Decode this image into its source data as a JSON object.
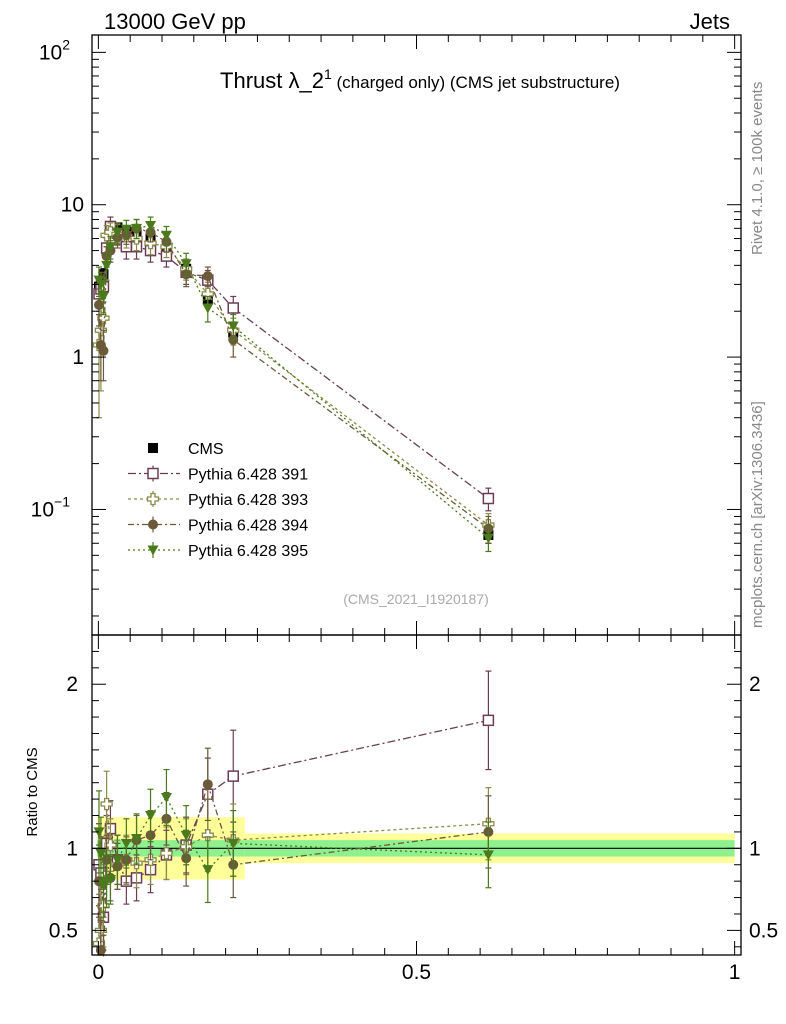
{
  "header": {
    "left": "13000 GeV pp",
    "right": "Jets"
  },
  "side": {
    "rivet": "Rivet 4.1.0, ≥ 100k events",
    "mcplots": "mcplots.cern.ch [arXiv:1306.3436]"
  },
  "watermark": "(CMS_2021_I1920187)",
  "colors": {
    "cms": "#000000",
    "p391": "#6b3d55",
    "p393": "#8a8a4a",
    "p394": "#6b5a3a",
    "p395": "#4a7a1a",
    "band_inner": "#8ff08f",
    "band_outer": "#ffff99"
  },
  "chart_data": [
    {
      "type": "scatter",
      "title": "Thrust λ_2¹ (charged only) (CMS jet substructure)",
      "title_main": "Thrust λ_2",
      "title_sup": "1",
      "title_rest": " (charged only) (CMS jet substructure)",
      "xlabel": "",
      "ylabel": "",
      "yscale": "log",
      "xlim": [
        -0.01,
        1.01
      ],
      "ylim": [
        0.015,
        130
      ],
      "yticks": [
        {
          "value": 100,
          "base": "10",
          "exp": "2"
        },
        {
          "value": 10,
          "base": "10",
          "exp": ""
        },
        {
          "value": 1,
          "base": "1",
          "exp": ""
        },
        {
          "value": 0.1,
          "base": "10",
          "exp": "−1"
        }
      ],
      "x": [
        0.001,
        0.004,
        0.008,
        0.013,
        0.019,
        0.03,
        0.044,
        0.06,
        0.082,
        0.107,
        0.138,
        0.172,
        0.212,
        0.613
      ],
      "series": [
        {
          "name": "CMS",
          "marker": "square-filled",
          "values": [
            2.9,
            3.1,
            3.5,
            5.0,
            6.5,
            7.1,
            6.7,
            6.6,
            6.0,
            4.8,
            3.8,
            2.4,
            1.45,
            0.068
          ],
          "errors": [
            0.3,
            0.3,
            0.3,
            0.4,
            0.4,
            0.4,
            0.4,
            0.4,
            0.35,
            0.3,
            0.25,
            0.2,
            0.12,
            0.008
          ]
        },
        {
          "name": "Pythia 6.428 391",
          "marker": "square-open",
          "dash": "8,3,2,3",
          "values": [
            2.6,
            2.8,
            2.9,
            5.2,
            7.2,
            6.5,
            5.3,
            5.3,
            5.0,
            4.6,
            3.6,
            3.2,
            2.1,
            0.118
          ],
          "errors": [
            0.7,
            0.6,
            0.6,
            0.8,
            1.1,
            1.0,
            0.9,
            0.9,
            0.8,
            0.7,
            0.6,
            0.5,
            0.4,
            0.02
          ]
        },
        {
          "name": "Pythia 6.428 393",
          "marker": "cross-open",
          "dash": "3,3",
          "values": [
            1.2,
            1.5,
            1.8,
            6.3,
            6.6,
            6.4,
            6.2,
            6.0,
            5.6,
            5.3,
            3.8,
            2.6,
            1.5,
            0.079
          ],
          "errors": [
            0.8,
            0.9,
            0.7,
            1.0,
            1.0,
            1.0,
            1.0,
            1.0,
            0.9,
            0.8,
            0.6,
            0.5,
            0.3,
            0.015
          ]
        },
        {
          "name": "Pythia 6.428 394",
          "marker": "circle-filled",
          "dash": "6,3,2,3",
          "values": [
            2.2,
            1.2,
            1.1,
            4.6,
            5.0,
            6.1,
            6.4,
            7.0,
            6.6,
            5.7,
            3.5,
            3.4,
            1.3,
            0.075
          ],
          "errors": [
            0.6,
            0.5,
            0.4,
            0.7,
            0.8,
            0.9,
            0.9,
            1.0,
            0.9,
            0.8,
            0.6,
            0.5,
            0.3,
            0.015
          ]
        },
        {
          "name": "Pythia 6.428 395",
          "marker": "triangle-down-filled",
          "dash": "2,3",
          "values": [
            3.2,
            3.0,
            2.5,
            4.0,
            5.3,
            6.6,
            6.9,
            7.0,
            7.3,
            6.3,
            4.1,
            2.1,
            1.6,
            0.065
          ],
          "errors": [
            0.7,
            0.6,
            0.6,
            0.8,
            0.9,
            1.0,
            1.0,
            1.0,
            1.0,
            0.9,
            0.7,
            0.4,
            0.3,
            0.012
          ]
        }
      ],
      "legend": {
        "position": "bottom-left"
      }
    },
    {
      "type": "scatter",
      "title": "",
      "xlabel": "",
      "ylabel": "Ratio to CMS",
      "xlim": [
        -0.01,
        1.01
      ],
      "ylim": [
        0.35,
        2.3
      ],
      "xticks": [
        0,
        0.5,
        1
      ],
      "xtick_labels": [
        "0",
        "0.5",
        "1"
      ],
      "yticks": [
        0.5,
        1,
        2
      ],
      "ytick_labels": [
        "0.5",
        "1",
        "2"
      ],
      "reference_line": 1,
      "bands": [
        {
          "x_from": -0.002,
          "x_to": 0.23,
          "inner": 0.05,
          "outer": 0.19
        },
        {
          "x_from": 0.23,
          "x_to": 1.0,
          "inner": 0.05,
          "outer": 0.09
        }
      ],
      "x": [
        0.001,
        0.004,
        0.008,
        0.013,
        0.019,
        0.03,
        0.044,
        0.06,
        0.082,
        0.107,
        0.138,
        0.172,
        0.212,
        0.613
      ],
      "series": [
        {
          "name": "Pythia 6.428 391",
          "marker": "square-open",
          "dash": "8,3,2,3",
          "values": [
            0.9,
            0.85,
            0.58,
            1.03,
            1.12,
            0.93,
            0.8,
            0.82,
            0.87,
            0.96,
            1.02,
            1.33,
            1.44,
            1.78
          ],
          "errors": [
            0.25,
            0.22,
            0.2,
            0.17,
            0.17,
            0.15,
            0.14,
            0.14,
            0.14,
            0.15,
            0.17,
            0.22,
            0.28,
            0.3
          ]
        },
        {
          "name": "Pythia 6.428 393",
          "marker": "cross-open",
          "dash": "3,3",
          "values": [
            0.42,
            0.5,
            0.65,
            1.27,
            1.02,
            0.9,
            0.93,
            0.91,
            0.93,
            0.97,
            1.01,
            1.08,
            1.05,
            1.15
          ],
          "errors": [
            0.3,
            0.3,
            0.25,
            0.2,
            0.16,
            0.15,
            0.15,
            0.15,
            0.15,
            0.16,
            0.17,
            0.22,
            0.22,
            0.22
          ]
        },
        {
          "name": "Pythia 6.428 394",
          "marker": "circle-filled",
          "dash": "6,3,2,3",
          "values": [
            0.8,
            0.38,
            0.32,
            0.93,
            0.82,
            0.89,
            0.93,
            1.05,
            1.08,
            1.18,
            0.94,
            1.39,
            0.9,
            1.1
          ],
          "errors": [
            0.22,
            0.18,
            0.15,
            0.15,
            0.14,
            0.14,
            0.14,
            0.15,
            0.15,
            0.16,
            0.17,
            0.22,
            0.2,
            0.22
          ]
        },
        {
          "name": "Pythia 6.428 395",
          "marker": "triangle-down-filled",
          "dash": "2,3",
          "values": [
            1.1,
            0.97,
            0.78,
            0.8,
            0.81,
            0.93,
            1.03,
            1.06,
            1.2,
            1.31,
            1.08,
            0.87,
            1.03,
            0.96
          ],
          "errors": [
            0.25,
            0.22,
            0.2,
            0.16,
            0.15,
            0.15,
            0.15,
            0.15,
            0.16,
            0.17,
            0.18,
            0.2,
            0.2,
            0.2
          ]
        }
      ]
    }
  ]
}
